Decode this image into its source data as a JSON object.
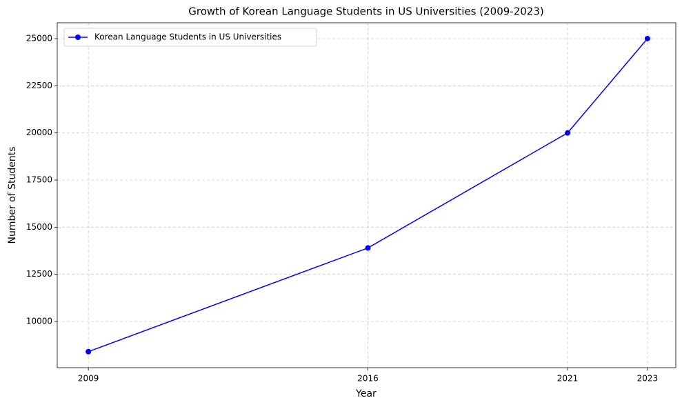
{
  "chart_data": {
    "type": "line",
    "title": "Growth of Korean Language Students in US Universities (2009-2023)",
    "x_label": "Year",
    "y_label": "Number of Students",
    "x": [
      2009,
      2016,
      2021,
      2023
    ],
    "series": [
      {
        "name": "Korean Language Students in US Universities",
        "color": "#0000ff",
        "values": [
          8400,
          13900,
          20000,
          25000
        ]
      }
    ],
    "xlim": [
      2008.22,
      2023.71
    ],
    "xticks": [
      2009,
      2016,
      2021,
      2023
    ],
    "ylim": [
      7550,
      25840
    ],
    "yticks": [
      10000,
      12500,
      15000,
      17500,
      20000,
      22500,
      25000
    ],
    "grid": true,
    "legend": "upper left"
  }
}
